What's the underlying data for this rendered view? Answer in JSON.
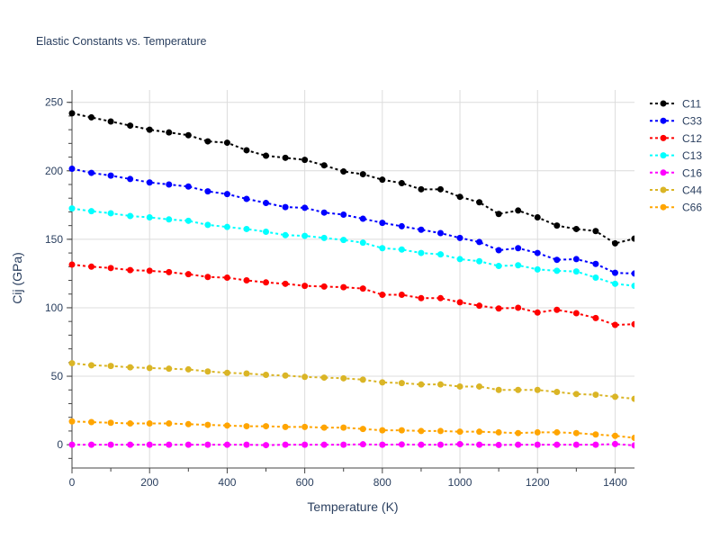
{
  "chart_data": {
    "type": "line",
    "title": "Elastic Constants vs. Temperature",
    "xlabel": "Temperature (K)",
    "ylabel": "Cij (GPa)",
    "xlim": [
      0,
      1450
    ],
    "ylim": [
      -17,
      259
    ],
    "x_ticks": [
      0,
      200,
      400,
      600,
      800,
      1000,
      1200,
      1400
    ],
    "y_ticks": [
      0,
      50,
      100,
      150,
      200,
      250
    ],
    "grid": true,
    "legend_position": "top-right",
    "x": [
      0,
      50,
      100,
      150,
      200,
      250,
      300,
      350,
      400,
      450,
      500,
      550,
      600,
      650,
      700,
      750,
      800,
      850,
      900,
      950,
      1000,
      1050,
      1100,
      1150,
      1200,
      1250,
      1300,
      1350,
      1400,
      1450
    ],
    "series": [
      {
        "name": "C11",
        "color": "#000000",
        "values": [
          242,
          239,
          236,
          233,
          230,
          228,
          226,
          221.5,
          220.5,
          215,
          211,
          209.5,
          208,
          204,
          199.5,
          197.5,
          193.5,
          191,
          186.5,
          186.5,
          181,
          177,
          168.5,
          171,
          166,
          160,
          157.5,
          156,
          147,
          150.5
        ]
      },
      {
        "name": "C33",
        "color": "#0000ff",
        "values": [
          201.5,
          198.5,
          196.5,
          194,
          191.5,
          190,
          188.5,
          185,
          183,
          179.5,
          176.5,
          173.5,
          173,
          169.5,
          168,
          165,
          162,
          159.5,
          157,
          154.5,
          151,
          148,
          142,
          143.5,
          140,
          135,
          135.5,
          132,
          125.5,
          125
        ]
      },
      {
        "name": "C12",
        "color": "#ff0000",
        "values": [
          131.5,
          130,
          129,
          127.5,
          127,
          126,
          124.5,
          122.5,
          122,
          120,
          118.5,
          117.5,
          116,
          115.5,
          115,
          114,
          109.5,
          109.5,
          107,
          107,
          104,
          101.5,
          99.5,
          100,
          96.5,
          98.5,
          96,
          92.5,
          87.5,
          88
        ]
      },
      {
        "name": "C13",
        "color": "#00ffff",
        "values": [
          172.5,
          170.5,
          169,
          167,
          166,
          164.5,
          163.5,
          160.5,
          159,
          157.5,
          155.5,
          153,
          152.5,
          151,
          149.5,
          147.5,
          143.5,
          142.5,
          140,
          139,
          135.5,
          134,
          130.5,
          131,
          128,
          127,
          126.5,
          122,
          117.5,
          116
        ]
      },
      {
        "name": "C16",
        "color": "#ff00ff",
        "values": [
          0,
          0,
          0,
          0,
          0,
          0,
          0,
          0,
          0,
          0,
          -0.3,
          0,
          0,
          0,
          0,
          0.3,
          0,
          0.2,
          0,
          0,
          0.4,
          0,
          -0.2,
          0,
          0,
          0,
          0,
          0,
          0.5,
          -0.5
        ]
      },
      {
        "name": "C44",
        "color": "#dab526",
        "values": [
          59.5,
          58,
          57.5,
          56.5,
          56,
          55.5,
          55,
          53.5,
          52.5,
          52,
          51,
          50.5,
          49.5,
          49,
          48.5,
          47.5,
          45.5,
          45,
          44,
          44,
          42.5,
          42.5,
          40,
          40,
          40,
          38.5,
          37,
          36.5,
          35,
          33.5
        ]
      },
      {
        "name": "C66",
        "color": "#ffa500",
        "values": [
          17,
          16.5,
          16,
          15.5,
          15.5,
          15.5,
          15,
          14.5,
          14,
          13.5,
          13.5,
          13,
          13,
          12.5,
          12.5,
          11.5,
          10.5,
          10.5,
          10,
          10,
          9.5,
          9.5,
          9,
          8.5,
          9,
          9,
          8.5,
          7.5,
          6.5,
          5
        ]
      }
    ]
  }
}
